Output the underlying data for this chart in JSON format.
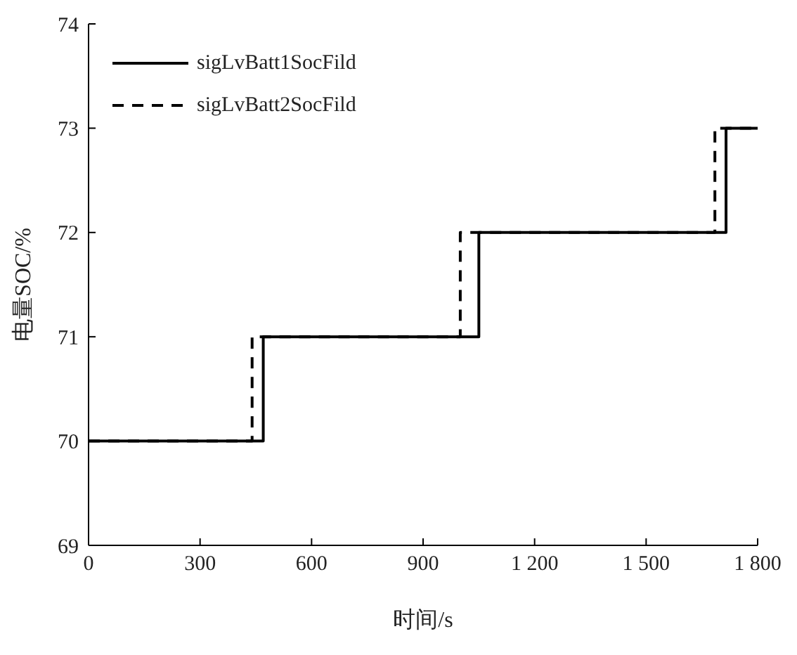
{
  "chart_data": {
    "type": "step",
    "xlabel": "时间/s",
    "ylabel": "电量SOC/%",
    "xlim": [
      0,
      1800
    ],
    "xticks": [
      0,
      300,
      600,
      900,
      {
        "value": 1200,
        "label": "1 200"
      },
      {
        "value": 1500,
        "label": "1 500"
      },
      {
        "value": 1800,
        "label": "1 800"
      }
    ],
    "ylim": [
      69,
      74
    ],
    "yticks": [
      69,
      70,
      71,
      72,
      73,
      74
    ],
    "legend": "top left",
    "grid": false,
    "marker": "none",
    "series": [
      {
        "name": "sigLvBatt1SocFild",
        "color": "#000000",
        "line_style": "solid",
        "x": [
          0,
          470,
          1050,
          1715,
          1800
        ],
        "values": [
          70,
          71,
          72,
          73,
          73
        ]
      },
      {
        "name": "sigLvBatt2SocFild",
        "color": "#000000",
        "line_style": "dashed",
        "x": [
          0,
          440,
          1000,
          1685,
          1800
        ],
        "values": [
          70,
          71,
          72,
          73,
          73
        ]
      }
    ]
  }
}
